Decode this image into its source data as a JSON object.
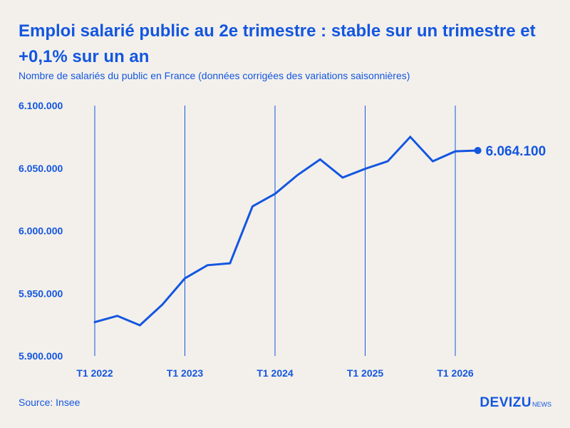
{
  "header": {
    "title": "Emploi salarié public au 2e trimestre : stable sur un trimestre et +0,1% sur un an",
    "subtitle": "Nombre de salariés du public en France (données corrigées des variations saisonnières)"
  },
  "footer": {
    "source": "Source: Insee",
    "brand": "DEVIZU",
    "brand_suffix": "NEWS"
  },
  "colors": {
    "accent": "#1356e0",
    "background": "#f3f0eb"
  },
  "chart_data": {
    "type": "line",
    "title": "",
    "xlabel": "",
    "ylabel": "",
    "ylim": [
      5900000,
      6100000
    ],
    "yticks": [
      {
        "value": 6100000,
        "label": "6.100.000"
      },
      {
        "value": 6050000,
        "label": "6.050.000"
      },
      {
        "value": 6000000,
        "label": "6.000.000"
      },
      {
        "value": 5950000,
        "label": "5.950.000"
      },
      {
        "value": 5900000,
        "label": "5.900.000"
      }
    ],
    "xticks": [
      {
        "index": 0,
        "label": "T1 2022"
      },
      {
        "index": 4,
        "label": "T1 2023"
      },
      {
        "index": 8,
        "label": "T1 2024"
      },
      {
        "index": 12,
        "label": "T1 2025"
      },
      {
        "index": 16,
        "label": "T1 2026"
      }
    ],
    "x": [
      "T1 2022",
      "T2 2022",
      "T3 2022",
      "T4 2022",
      "T1 2023",
      "T2 2023",
      "T3 2023",
      "T4 2023",
      "T1 2024",
      "T2 2024",
      "T3 2024",
      "T4 2024",
      "T1 2025",
      "T2 2025",
      "T3 2025",
      "T4 2025",
      "T1 2026",
      "T2 2026"
    ],
    "series": [
      {
        "values": [
          5927000,
          5932000,
          5924500,
          5941000,
          5962000,
          5972500,
          5974000,
          6019500,
          6029500,
          6044500,
          6057000,
          6042500,
          6049500,
          6055500,
          6075000,
          6055500,
          6063500,
          6064100
        ]
      }
    ],
    "grid": "vertical lines at T1 of each year",
    "last_value_label": "6.064.100"
  }
}
